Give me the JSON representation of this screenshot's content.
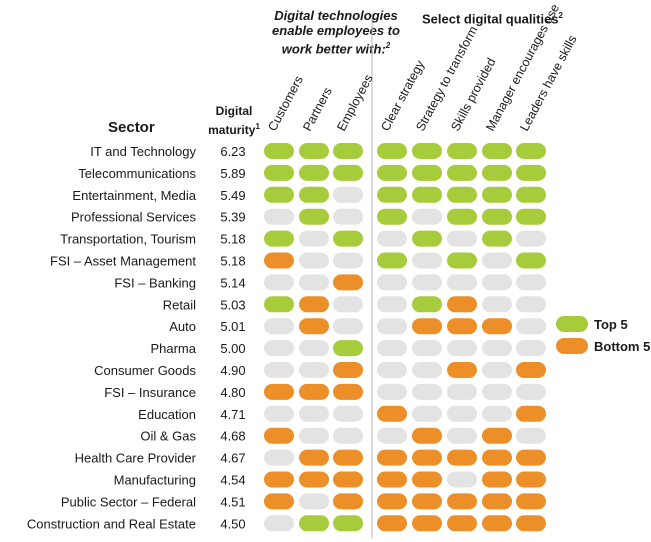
{
  "group_headers": {
    "technologies": "Digital technologies enable employees to work better with:",
    "technologies_note": "2",
    "qualities": "Select digital qualities",
    "qualities_note": "2"
  },
  "row_header": "Sector",
  "maturity_header_line1": "Digital",
  "maturity_header_line2": "maturity",
  "maturity_note": "1",
  "legend": {
    "top": "Top 5",
    "bottom": "Bottom 5"
  },
  "colors": {
    "top": "#a6cc3c",
    "bottom": "#ec8f28",
    "neutral": "#e3e3e3",
    "divider": "#b5b5b5"
  },
  "chart_data": {
    "type": "table",
    "columns": [
      "Customers",
      "Partners",
      "Employees",
      "Clear strategy",
      "Strategy to transform",
      "Skills provided",
      "Manager encourages use",
      "Leaders have skills"
    ],
    "rows": [
      {
        "sector": "IT and Technology",
        "maturity": "6.23",
        "cells": [
          "T",
          "T",
          "T",
          "T",
          "T",
          "T",
          "T",
          "T"
        ]
      },
      {
        "sector": "Telecommunications",
        "maturity": "5.89",
        "cells": [
          "T",
          "T",
          "T",
          "T",
          "T",
          "T",
          "T",
          "T"
        ]
      },
      {
        "sector": "Entertainment, Media",
        "maturity": "5.49",
        "cells": [
          "T",
          "T",
          "N",
          "T",
          "T",
          "T",
          "T",
          "T"
        ]
      },
      {
        "sector": "Professional Services",
        "maturity": "5.39",
        "cells": [
          "N",
          "T",
          "N",
          "T",
          "N",
          "T",
          "T",
          "T"
        ]
      },
      {
        "sector": "Transportation, Tourism",
        "maturity": "5.18",
        "cells": [
          "T",
          "N",
          "T",
          "N",
          "T",
          "N",
          "T",
          "N"
        ]
      },
      {
        "sector": "FSI – Asset Management",
        "maturity": "5.18",
        "cells": [
          "B",
          "N",
          "N",
          "T",
          "N",
          "T",
          "N",
          "T"
        ]
      },
      {
        "sector": "FSI – Banking",
        "maturity": "5.14",
        "cells": [
          "N",
          "N",
          "B",
          "N",
          "N",
          "N",
          "N",
          "N"
        ]
      },
      {
        "sector": "Retail",
        "maturity": "5.03",
        "cells": [
          "T",
          "B",
          "N",
          "N",
          "T",
          "B",
          "N",
          "N"
        ]
      },
      {
        "sector": "Auto",
        "maturity": "5.01",
        "cells": [
          "N",
          "B",
          "N",
          "N",
          "B",
          "B",
          "B",
          "N"
        ]
      },
      {
        "sector": "Pharma",
        "maturity": "5.00",
        "cells": [
          "N",
          "N",
          "T",
          "N",
          "N",
          "N",
          "N",
          "N"
        ]
      },
      {
        "sector": "Consumer Goods",
        "maturity": "4.90",
        "cells": [
          "N",
          "N",
          "B",
          "N",
          "N",
          "B",
          "N",
          "B"
        ]
      },
      {
        "sector": "FSI – Insurance",
        "maturity": "4.80",
        "cells": [
          "B",
          "B",
          "B",
          "N",
          "N",
          "N",
          "N",
          "N"
        ]
      },
      {
        "sector": "Education",
        "maturity": "4.71",
        "cells": [
          "N",
          "N",
          "N",
          "B",
          "N",
          "N",
          "N",
          "B"
        ]
      },
      {
        "sector": "Oil & Gas",
        "maturity": "4.68",
        "cells": [
          "B",
          "N",
          "N",
          "N",
          "B",
          "N",
          "B",
          "N"
        ]
      },
      {
        "sector": "Health Care Provider",
        "maturity": "4.67",
        "cells": [
          "N",
          "B",
          "B",
          "B",
          "B",
          "B",
          "B",
          "B"
        ]
      },
      {
        "sector": "Manufacturing",
        "maturity": "4.54",
        "cells": [
          "B",
          "B",
          "B",
          "B",
          "B",
          "N",
          "B",
          "B"
        ]
      },
      {
        "sector": "Public Sector – Federal",
        "maturity": "4.51",
        "cells": [
          "B",
          "N",
          "B",
          "B",
          "B",
          "B",
          "B",
          "B"
        ]
      },
      {
        "sector": "Construction and Real Estate",
        "maturity": "4.50",
        "cells": [
          "N",
          "T",
          "T",
          "B",
          "B",
          "B",
          "B",
          "B"
        ]
      }
    ]
  }
}
